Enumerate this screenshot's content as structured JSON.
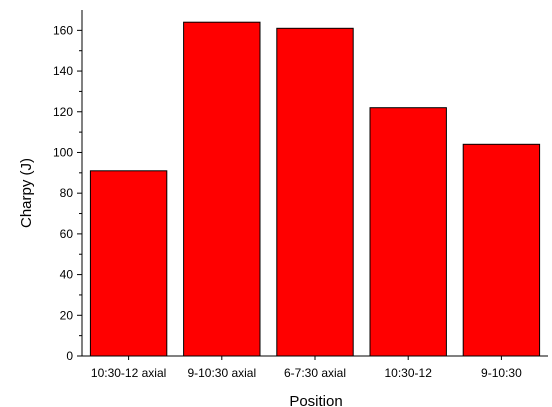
{
  "chart_data": {
    "type": "bar",
    "categories": [
      "10:30-12 axial",
      "9-10:30 axial",
      "6-7:30 axial",
      "10:30-12",
      "9-10:30"
    ],
    "values": [
      91,
      164,
      161,
      122,
      104
    ],
    "title": "",
    "xlabel": "Position",
    "ylabel": "Charpy (J)",
    "ylim": [
      0,
      170
    ],
    "yticks": [
      0,
      20,
      40,
      60,
      80,
      100,
      120,
      140,
      160
    ],
    "bar_color": "#ff0000",
    "bar_edge_color": "#000000",
    "grid": false,
    "legend": "none"
  }
}
